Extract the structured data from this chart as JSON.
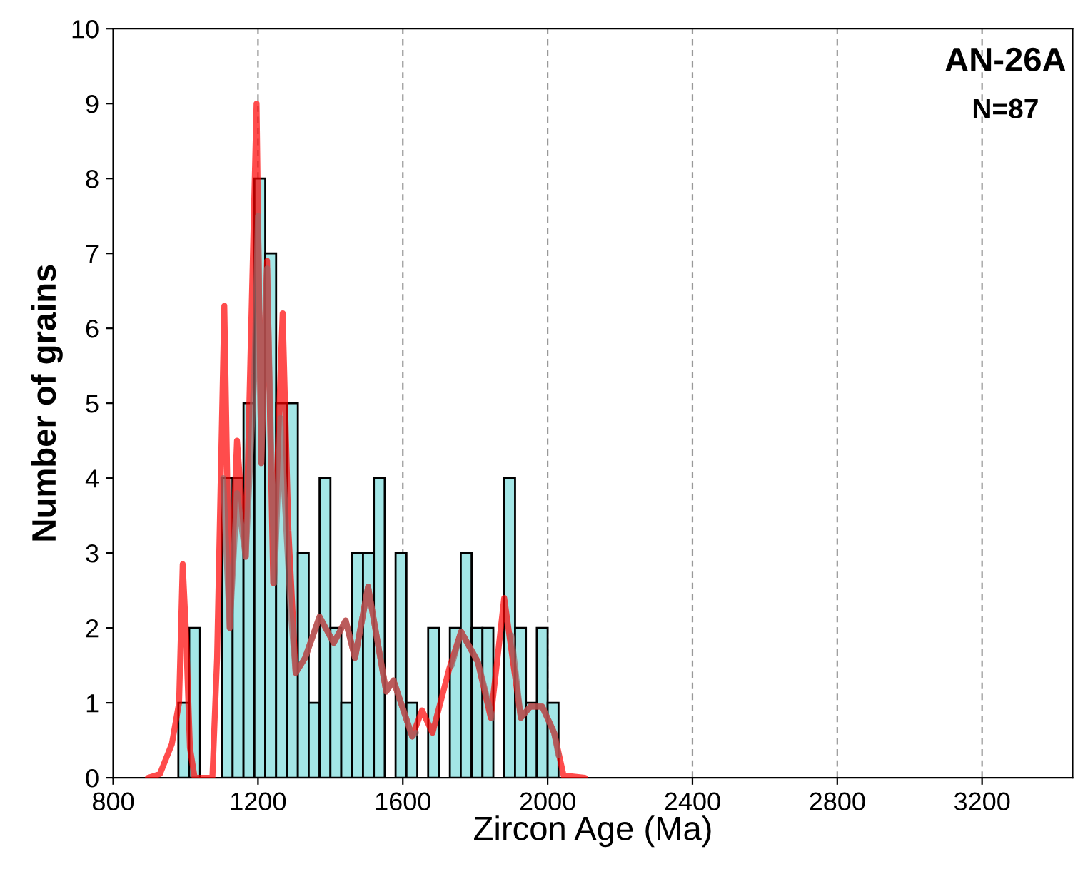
{
  "chart_data": {
    "type": "histogram",
    "xlabel": "Zircon Age (Ma)",
    "ylabel": "Number of grains",
    "annotations": [
      "AN-26A",
      "N=87"
    ],
    "bins": [
      980,
      1010,
      1040,
      1070,
      1100,
      1130,
      1160,
      1190,
      1220,
      1250,
      1280,
      1310,
      1340,
      1370,
      1400,
      1430,
      1460,
      1490,
      1520,
      1550,
      1580,
      1610,
      1640,
      1670,
      1700,
      1730,
      1760,
      1790,
      1820,
      1850,
      1880,
      1910,
      1940,
      1970,
      2000,
      2030
    ],
    "values": [
      1,
      2,
      0,
      0,
      4,
      4,
      5,
      8,
      7,
      5,
      5,
      3,
      1,
      4,
      2,
      1,
      3,
      3,
      4,
      0,
      3,
      1,
      0,
      2,
      0,
      2,
      3,
      2,
      2,
      0,
      4,
      2,
      1,
      2,
      1
    ],
    "color": "#a3e6e6",
    "series": [
      {
        "type": "line",
        "color": "#ff0000",
        "x": [
          896,
          929,
          962,
          982,
          992,
          1001,
          1012,
          1025,
          1074,
          1087,
          1107,
          1122,
          1142,
          1166,
          1196,
          1209,
          1225,
          1242,
          1268,
          1284,
          1304,
          1330,
          1370,
          1409,
          1442,
          1468,
          1504,
          1554,
          1574,
          1626,
          1653,
          1682,
          1728,
          1761,
          1807,
          1843,
          1880,
          1926,
          1952,
          1985,
          2018,
          2044,
          2103
        ],
        "values": [
          0,
          0.05,
          0.45,
          1.0,
          2.85,
          1.95,
          0.4,
          0,
          0,
          1.6,
          6.3,
          2.0,
          4.5,
          2.95,
          9.0,
          4.2,
          6.9,
          2.6,
          6.2,
          3.3,
          1.4,
          1.6,
          2.15,
          1.8,
          2.1,
          1.6,
          2.55,
          1.15,
          1.3,
          0.55,
          0.9,
          0.6,
          1.45,
          1.95,
          1.55,
          0.8,
          2.4,
          0.8,
          0.95,
          0.95,
          0.6,
          0.03,
          0
        ]
      },
      {
        "type": "line",
        "color": "#9e6464",
        "x": [
          1104,
          1122,
          1142,
          1166,
          1190,
          1200,
          1209,
          1225,
          1245,
          1262,
          1290,
          1304,
          1330,
          1370,
          1409,
          1442,
          1468,
          1504,
          1554,
          1574,
          1626,
          1636,
          1690,
          1735,
          1761,
          1807,
          1847,
          1870,
          1900,
          1926,
          1952,
          1985,
          2018,
          2030
        ],
        "values": [
          4.0,
          2.0,
          3.8,
          2.95,
          5.4,
          7.5,
          4.2,
          6.8,
          2.6,
          4.8,
          2.25,
          1.4,
          1.6,
          2.15,
          1.8,
          2.1,
          1.6,
          2.55,
          1.15,
          1.3,
          0.55,
          0.6,
          null,
          1.5,
          1.95,
          1.55,
          0.8,
          null,
          1.9,
          0.8,
          0.95,
          0.95,
          0.6,
          0.3
        ]
      }
    ],
    "xlim": [
      800,
      3450
    ],
    "xticks": [
      800,
      1200,
      1600,
      2000,
      2400,
      2800,
      3200
    ],
    "ylim": [
      0,
      10
    ],
    "yticks": [
      0,
      1,
      2,
      3,
      4,
      5,
      6,
      7,
      8,
      9,
      10
    ],
    "grid": "x"
  }
}
